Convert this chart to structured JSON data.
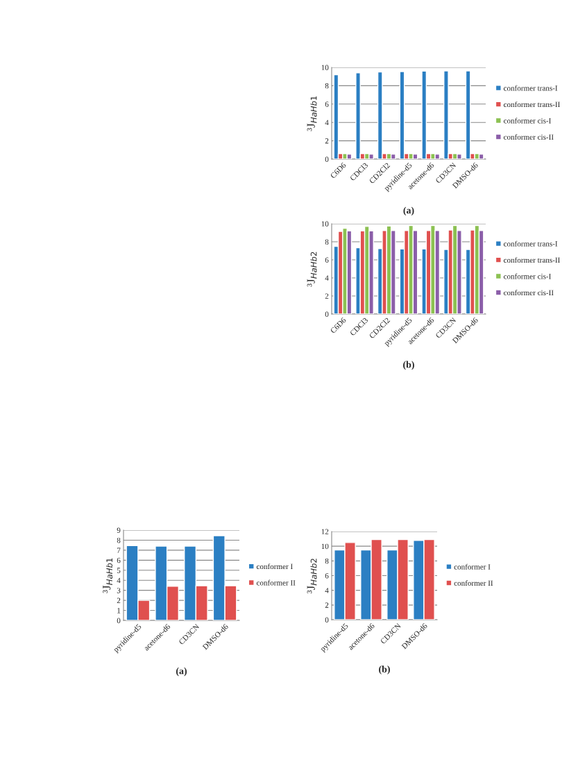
{
  "chart_data": [
    {
      "type": "bar",
      "ylabel": "³J$_{HaHb1}$",
      "annotations": [
        "(a)"
      ],
      "categories": [
        "C6D6",
        "CDCl3",
        "CD2Cl2",
        "pyridine-d5",
        "acetone-d6",
        "CD3CN",
        "DMSO-d6"
      ],
      "ylim": [
        0,
        10
      ],
      "yticks": [
        0,
        2,
        4,
        6,
        8,
        10
      ],
      "grid": "y",
      "legend": "right",
      "series": [
        {
          "name": "conformer trans-I",
          "color": "#2b7fc3",
          "values": [
            9.2,
            9.4,
            9.5,
            9.55,
            9.6,
            9.62,
            9.62
          ]
        },
        {
          "name": "conformer trans-II",
          "color": "#e0504f",
          "values": [
            0.6,
            0.6,
            0.6,
            0.6,
            0.6,
            0.6,
            0.6
          ]
        },
        {
          "name": "conformer cis-I",
          "color": "#8cc152",
          "values": [
            0.6,
            0.6,
            0.6,
            0.6,
            0.6,
            0.6,
            0.6
          ]
        },
        {
          "name": "conformer cis-II",
          "color": "#8b5ea9",
          "values": [
            0.55,
            0.55,
            0.55,
            0.55,
            0.55,
            0.55,
            0.55
          ]
        }
      ]
    },
    {
      "type": "bar",
      "ylabel": "³J$_{HaHb2}$",
      "annotations": [
        "(b)"
      ],
      "categories": [
        "C6D6",
        "CDCl3",
        "CD2Cl2",
        "pyridine-d5",
        "acetone-d6",
        "CD3CN",
        "DMSO-d6"
      ],
      "ylim": [
        0,
        10
      ],
      "yticks": [
        0,
        2,
        4,
        6,
        8,
        10
      ],
      "grid": "y",
      "legend": "right",
      "series": [
        {
          "name": "conformer trans-I",
          "color": "#2b7fc3",
          "values": [
            7.5,
            7.35,
            7.25,
            7.2,
            7.2,
            7.15,
            7.15
          ]
        },
        {
          "name": "conformer trans-II",
          "color": "#e0504f",
          "values": [
            9.15,
            9.2,
            9.25,
            9.25,
            9.25,
            9.3,
            9.3
          ]
        },
        {
          "name": "conformer cis-I",
          "color": "#8cc152",
          "values": [
            9.5,
            9.7,
            9.75,
            9.8,
            9.8,
            9.8,
            9.8
          ]
        },
        {
          "name": "conformer cis-II",
          "color": "#8b5ea9",
          "values": [
            9.2,
            9.2,
            9.25,
            9.25,
            9.25,
            9.25,
            9.25
          ]
        }
      ]
    },
    {
      "type": "bar",
      "ylabel": "³J$_{HaHb1}$",
      "annotations": [
        "(a)"
      ],
      "categories": [
        "pyridine-d5",
        "acetone-d6",
        "CD3CN",
        "DMSO-d6"
      ],
      "ylim": [
        0,
        9
      ],
      "yticks": [
        0,
        1,
        2,
        3,
        4,
        5,
        6,
        7,
        8,
        9
      ],
      "grid": "y",
      "legend": "right",
      "series": [
        {
          "name": "conformer I",
          "color": "#2b7fc3",
          "values": [
            7.45,
            7.4,
            7.4,
            8.45
          ]
        },
        {
          "name": "conformer II",
          "color": "#e0504f",
          "values": [
            2.0,
            3.4,
            3.45,
            3.45
          ]
        }
      ]
    },
    {
      "type": "bar",
      "ylabel": "³J$_{HaHb2}$",
      "annotations": [
        "(b)"
      ],
      "categories": [
        "pyridine-d5",
        "acetone-d6",
        "CD3CN",
        "DMSO-d6"
      ],
      "ylim": [
        0,
        12
      ],
      "yticks": [
        0,
        2,
        4,
        6,
        8,
        10,
        12
      ],
      "grid": "y",
      "legend": "right",
      "series": [
        {
          "name": "conformer I",
          "color": "#2b7fc3",
          "values": [
            9.5,
            9.5,
            9.5,
            10.8
          ]
        },
        {
          "name": "conformer II",
          "color": "#e0504f",
          "values": [
            10.5,
            10.9,
            10.9,
            10.9
          ]
        }
      ]
    }
  ]
}
